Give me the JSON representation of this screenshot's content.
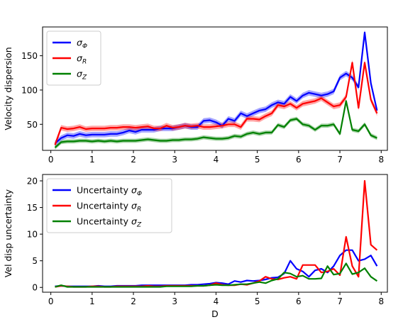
{
  "chart_data": [
    {
      "type": "line",
      "title": "",
      "xlabel": "",
      "ylabel": "Velocity dispersion",
      "xlim": [
        -0.2,
        8.15
      ],
      "ylim": [
        12,
        192
      ],
      "xticks": [
        "0",
        "1",
        "2",
        "3",
        "4",
        "5",
        "6",
        "7",
        "8"
      ],
      "yticks": [
        "50",
        "100",
        "150"
      ],
      "legend": "top-left",
      "x": [
        0.1,
        0.25,
        0.4,
        0.55,
        0.7,
        0.85,
        1.0,
        1.15,
        1.3,
        1.45,
        1.6,
        1.75,
        1.9,
        2.05,
        2.2,
        2.35,
        2.5,
        2.65,
        2.8,
        2.95,
        3.1,
        3.25,
        3.4,
        3.55,
        3.7,
        3.85,
        4.0,
        4.15,
        4.3,
        4.45,
        4.6,
        4.75,
        4.9,
        5.05,
        5.2,
        5.35,
        5.5,
        5.65,
        5.8,
        5.95,
        6.1,
        6.25,
        6.4,
        6.55,
        6.7,
        6.85,
        7.0,
        7.15,
        7.3,
        7.45,
        7.6,
        7.75,
        7.9
      ],
      "series": [
        {
          "name": "σ_Φ",
          "legend_main": "σ",
          "legend_sub": "Φ",
          "color": "#0000ff",
          "band": 4,
          "values": [
            22,
            30,
            34,
            33,
            36,
            34,
            35,
            35,
            35,
            36,
            36,
            38,
            41,
            39,
            42,
            42,
            42,
            44,
            44,
            44,
            46,
            48,
            46,
            46,
            55,
            56,
            53,
            48,
            58,
            55,
            66,
            62,
            66,
            70,
            72,
            78,
            82,
            80,
            90,
            84,
            92,
            96,
            94,
            92,
            94,
            98,
            118,
            124,
            118,
            104,
            184,
            110,
            70
          ]
        },
        {
          "name": "σ_R",
          "legend_main": "σ",
          "legend_sub": "R",
          "color": "#ff0000",
          "band": 4,
          "values": [
            20,
            45,
            43,
            44,
            46,
            43,
            44,
            44,
            44,
            45,
            45,
            46,
            46,
            45,
            46,
            47,
            44,
            44,
            48,
            45,
            46,
            48,
            47,
            48,
            46,
            46,
            47,
            48,
            50,
            50,
            46,
            58,
            58,
            57,
            62,
            66,
            78,
            76,
            80,
            74,
            80,
            82,
            84,
            88,
            82,
            76,
            78,
            90,
            140,
            74,
            140,
            86,
            66
          ]
        },
        {
          "name": "σ_Z",
          "legend_main": "σ",
          "legend_sub": "Z",
          "color": "#008000",
          "band": 3,
          "values": [
            16,
            24,
            25,
            25,
            26,
            26,
            25,
            26,
            25,
            26,
            25,
            26,
            26,
            26,
            27,
            28,
            27,
            26,
            26,
            27,
            27,
            28,
            28,
            29,
            31,
            30,
            29,
            29,
            30,
            33,
            32,
            36,
            38,
            36,
            38,
            38,
            49,
            46,
            56,
            58,
            50,
            48,
            42,
            48,
            48,
            50,
            36,
            84,
            42,
            40,
            50,
            34,
            30
          ]
        }
      ]
    },
    {
      "type": "line",
      "title": "",
      "xlabel": "D",
      "ylabel": "Vel disp uncertainty",
      "xlim": [
        -0.2,
        8.15
      ],
      "ylim": [
        -0.9,
        21.2
      ],
      "xticks": [
        "0",
        "1",
        "2",
        "3",
        "4",
        "5",
        "6",
        "7",
        "8"
      ],
      "yticks": [
        "0",
        "5",
        "10",
        "15",
        "20"
      ],
      "legend": "top-left",
      "x": [
        0.1,
        0.25,
        0.4,
        0.55,
        0.7,
        0.85,
        1.0,
        1.15,
        1.3,
        1.45,
        1.6,
        1.75,
        1.9,
        2.05,
        2.2,
        2.35,
        2.5,
        2.65,
        2.8,
        2.95,
        3.1,
        3.25,
        3.4,
        3.55,
        3.7,
        3.85,
        4.0,
        4.15,
        4.3,
        4.45,
        4.6,
        4.75,
        4.9,
        5.05,
        5.2,
        5.35,
        5.5,
        5.65,
        5.8,
        5.95,
        6.1,
        6.25,
        6.4,
        6.55,
        6.7,
        6.85,
        7.0,
        7.15,
        7.3,
        7.45,
        7.6,
        7.75,
        7.9
      ],
      "series": [
        {
          "name": "Uncertainty σ_Φ",
          "legend_main": "Uncertainty σ",
          "legend_sub": "Φ",
          "color": "#0000ff",
          "band": 0,
          "values": [
            0.2,
            0.3,
            0.2,
            0.2,
            0.2,
            0.2,
            0.2,
            0.3,
            0.2,
            0.2,
            0.3,
            0.3,
            0.3,
            0.3,
            0.4,
            0.4,
            0.4,
            0.4,
            0.4,
            0.4,
            0.4,
            0.4,
            0.5,
            0.5,
            0.6,
            0.7,
            0.9,
            0.8,
            0.6,
            1.2,
            1.0,
            1.3,
            1.2,
            1.3,
            1.5,
            1.8,
            1.9,
            2.6,
            5.0,
            3.5,
            3.0,
            2.0,
            3.2,
            3.5,
            2.8,
            4.0,
            6.0,
            7.0,
            7.0,
            5.0,
            5.3,
            6.0,
            4.0
          ]
        },
        {
          "name": "Uncertainty σ_R",
          "legend_main": "Uncertainty σ",
          "legend_sub": "R",
          "color": "#ff0000",
          "band": 0,
          "values": [
            0.1,
            0.3,
            0.2,
            0.1,
            0.1,
            0.1,
            0.2,
            0.2,
            0.1,
            0.1,
            0.2,
            0.2,
            0.2,
            0.2,
            0.2,
            0.3,
            0.2,
            0.2,
            0.3,
            0.3,
            0.3,
            0.3,
            0.3,
            0.3,
            0.3,
            0.4,
            0.8,
            0.5,
            0.4,
            0.4,
            0.6,
            0.5,
            0.8,
            1.2,
            2.0,
            1.6,
            1.5,
            1.8,
            2.0,
            1.6,
            4.2,
            4.2,
            4.2,
            2.8,
            3.0,
            3.5,
            2.3,
            9.5,
            4.0,
            2.0,
            20.0,
            8.0,
            7.0
          ]
        },
        {
          "name": "Uncertainty σ_Z",
          "legend_main": "Uncertainty σ",
          "legend_sub": "Z",
          "color": "#008000",
          "band": 0,
          "values": [
            0.1,
            0.4,
            0.1,
            0.1,
            0.1,
            0.1,
            0.1,
            0.1,
            0.1,
            0.1,
            0.1,
            0.1,
            0.1,
            0.1,
            0.1,
            0.1,
            0.1,
            0.1,
            0.2,
            0.2,
            0.2,
            0.2,
            0.2,
            0.3,
            0.3,
            0.4,
            0.5,
            0.4,
            0.4,
            0.5,
            0.6,
            0.6,
            0.8,
            1.0,
            0.8,
            1.3,
            1.6,
            2.8,
            2.6,
            2.0,
            2.2,
            1.6,
            1.6,
            1.7,
            4.0,
            2.4,
            2.6,
            4.5,
            2.5,
            2.8,
            3.6,
            2.0,
            1.2
          ]
        }
      ]
    }
  ]
}
